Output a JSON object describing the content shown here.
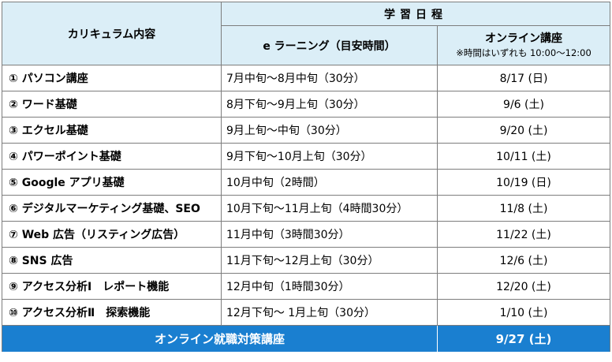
{
  "header": {
    "curriculum": "カリキュラム内容",
    "schedule": "学習日程",
    "elearning": "e ラーニング（目安時間）",
    "online": "オンライン講座",
    "online_note": "※時間はいずれも 10:00～12:00"
  },
  "rows": [
    {
      "course": "① パソコン講座",
      "elearn": "7月中旬～8月中旬（30分）",
      "online": "8/17 (日)"
    },
    {
      "course": "② ワード基礎",
      "elearn": "8月下旬～9月上旬（30分）",
      "online": "9/6 (土)"
    },
    {
      "course": "③ エクセル基礎",
      "elearn": "9月上旬～中旬（30分）",
      "online": "9/20 (土)"
    },
    {
      "course": "④ パワーポイント基礎",
      "elearn": "9月下旬～10月上旬（30分）",
      "online": "10/11 (土)"
    },
    {
      "course": "⑤ Google アプリ基礎",
      "elearn": "10月中旬（2時間）",
      "online": "10/19 (日)"
    },
    {
      "course": "⑥ デジタルマーケティング基礎、SEO",
      "elearn": "10月下旬～11月上旬（4時間30分）",
      "online": "11/8 (土)"
    },
    {
      "course": "⑦ Web 広告（リスティング広告）",
      "elearn": "11月中旬（3時間30分）",
      "online": "11/22 (土)"
    },
    {
      "course": "⑧ SNS 広告",
      "elearn": "11月下旬～12月上旬（30分）",
      "online": "12/6 (土)"
    },
    {
      "course": "⑨ アクセス分析Ⅰ　レポート機能",
      "elearn": "12月中旬（1時間30分）",
      "online": "12/20 (土)"
    },
    {
      "course": "⑩ アクセス分析Ⅱ　探索機能",
      "elearn": "12月下旬～ 1月上旬（30分）",
      "online": "1/10 (土)"
    }
  ],
  "footer": {
    "title": "オンライン就職対策講座",
    "date": "9/27 (土)"
  }
}
